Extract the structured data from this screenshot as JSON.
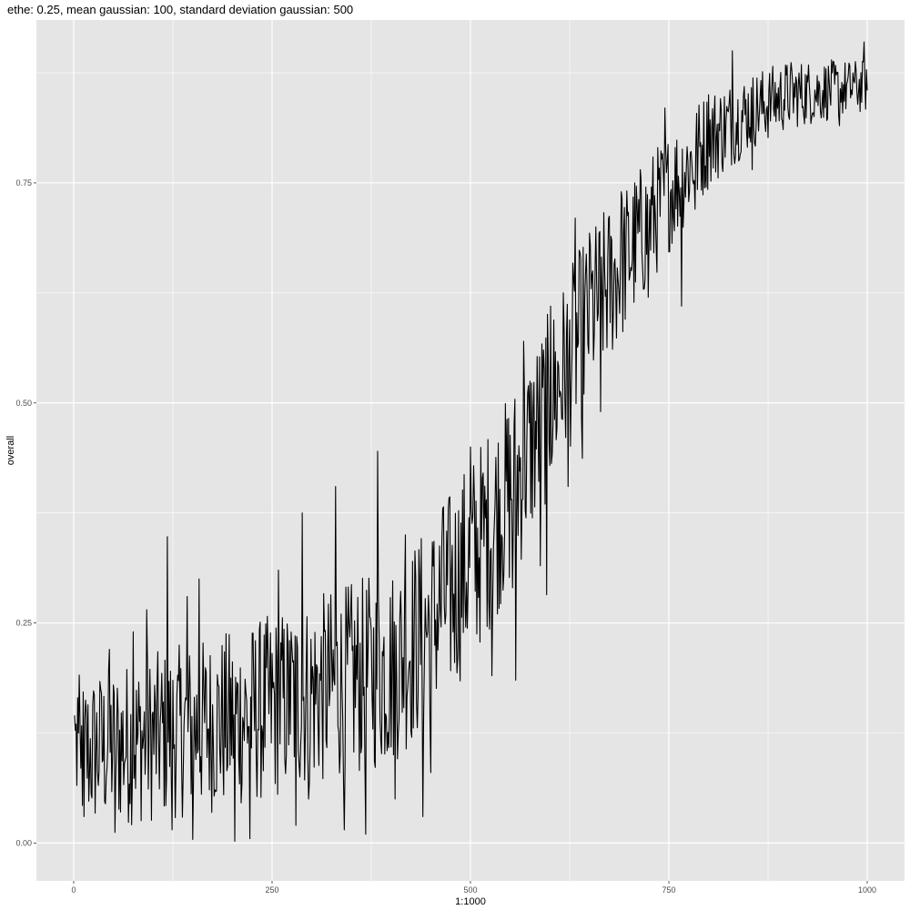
{
  "chart_data": {
    "type": "line",
    "title": "ethe: 0.25, mean gaussian: 100, standard deviation gaussian: 500",
    "xlabel": "1:1000",
    "ylabel": "overall",
    "xlim": [
      -47,
      1047
    ],
    "ylim": [
      -0.043,
      0.935
    ],
    "x_ticks": [
      0,
      250,
      500,
      750,
      1000
    ],
    "x_tick_labels": [
      "0",
      "250",
      "500",
      "750",
      "1000"
    ],
    "y_ticks": [
      0.0,
      0.25,
      0.5,
      0.75
    ],
    "y_tick_labels": [
      "0.00",
      "0.25",
      "0.50",
      "0.75"
    ],
    "grid": true,
    "background": "#e5e5e5",
    "grid_color": "#ffffff",
    "line_color": "#000000",
    "series": [
      {
        "x_start": 1,
        "x_end": 1000,
        "trend": [
          [
            1,
            0.1
          ],
          [
            100,
            0.12
          ],
          [
            200,
            0.14
          ],
          [
            300,
            0.17
          ],
          [
            400,
            0.2
          ],
          [
            450,
            0.25
          ],
          [
            500,
            0.32
          ],
          [
            550,
            0.4
          ],
          [
            600,
            0.5
          ],
          [
            650,
            0.6
          ],
          [
            700,
            0.67
          ],
          [
            750,
            0.74
          ],
          [
            800,
            0.8
          ],
          [
            850,
            0.83
          ],
          [
            900,
            0.85
          ],
          [
            1000,
            0.86
          ]
        ],
        "noise_amplitude": [
          [
            1,
            0.09
          ],
          [
            300,
            0.11
          ],
          [
            500,
            0.12
          ],
          [
            650,
            0.1
          ],
          [
            750,
            0.07
          ],
          [
            850,
            0.045
          ],
          [
            1000,
            0.03
          ]
        ],
        "highlights": [
          [
            1,
            0.145
          ],
          [
            3,
            0.135
          ],
          [
            5,
            0.165
          ],
          [
            9,
            0.085
          ],
          [
            13,
            0.03
          ],
          [
            20,
            0.08
          ],
          [
            35,
            0.17
          ],
          [
            45,
            0.22
          ],
          [
            52,
            0.012
          ],
          [
            75,
            0.24
          ],
          [
            92,
            0.265
          ],
          [
            118,
            0.348
          ],
          [
            124,
            0.015
          ],
          [
            143,
            0.28
          ],
          [
            150,
            0.004
          ],
          [
            158,
            0.3
          ],
          [
            203,
            0.002
          ],
          [
            222,
            0.005
          ],
          [
            258,
            0.31
          ],
          [
            272,
            0.23
          ],
          [
            280,
            0.02
          ],
          [
            288,
            0.375
          ],
          [
            296,
            0.05
          ],
          [
            330,
            0.405
          ],
          [
            341,
            0.015
          ],
          [
            368,
            0.01
          ],
          [
            375,
            0.24
          ],
          [
            383,
            0.445
          ],
          [
            405,
            0.05
          ],
          [
            418,
            0.35
          ],
          [
            440,
            0.03
          ],
          [
            450,
            0.08
          ],
          [
            465,
            0.38
          ],
          [
            500,
            0.45
          ],
          [
            520,
            0.39
          ],
          [
            527,
            0.19
          ],
          [
            553,
            0.29
          ],
          [
            557,
            0.185
          ],
          [
            567,
            0.57
          ],
          [
            588,
            0.315
          ],
          [
            596,
            0.282
          ],
          [
            601,
            0.61
          ],
          [
            623,
            0.405
          ],
          [
            632,
            0.71
          ],
          [
            641,
            0.437
          ],
          [
            651,
            0.68
          ],
          [
            664,
            0.49
          ],
          [
            690,
            0.74
          ],
          [
            724,
            0.62
          ],
          [
            745,
            0.835
          ],
          [
            766,
            0.61
          ],
          [
            783,
            0.72
          ],
          [
            800,
            0.85
          ],
          [
            830,
            0.9
          ],
          [
            855,
            0.765
          ],
          [
            880,
            0.865
          ],
          [
            965,
            0.815
          ],
          [
            982,
            0.875
          ],
          [
            996,
            0.91
          ],
          [
            1000,
            0.855
          ]
        ],
        "seed": 12345
      }
    ]
  }
}
